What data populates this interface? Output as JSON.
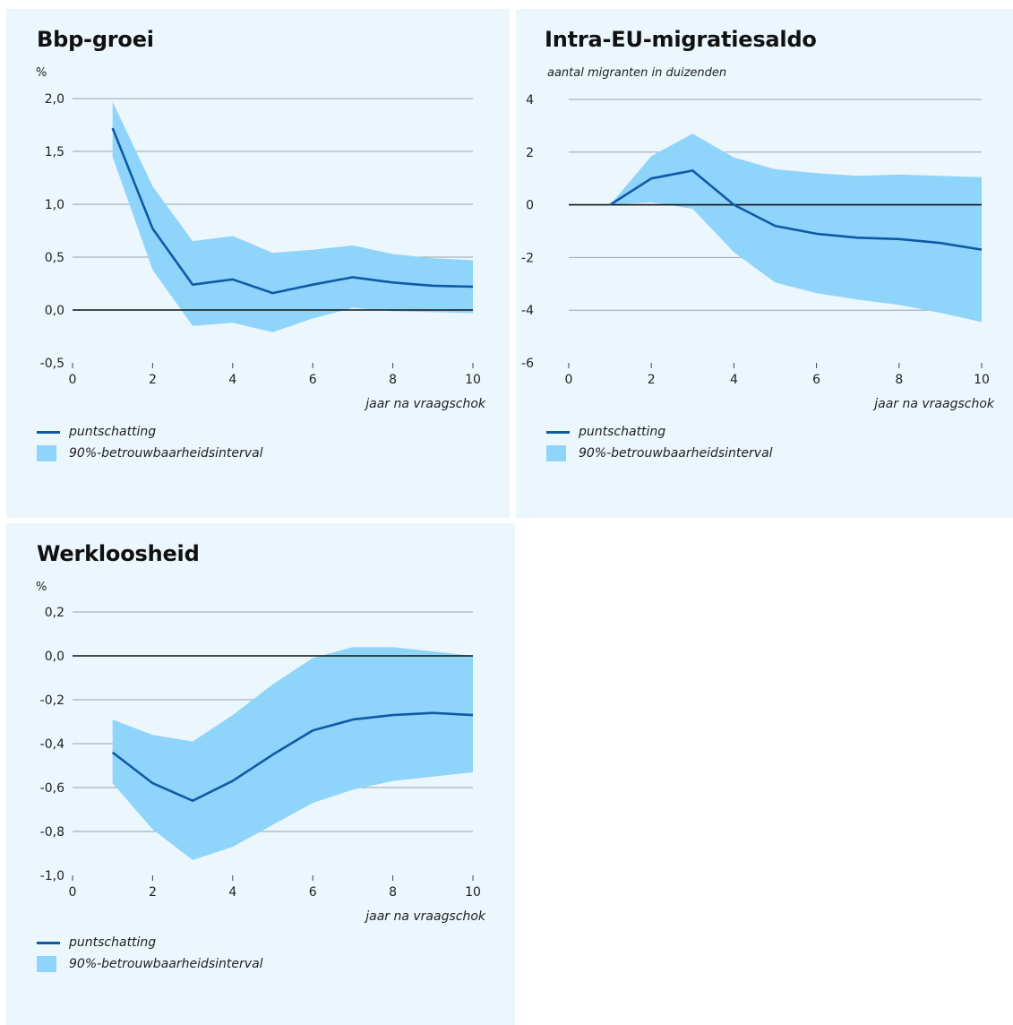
{
  "colors": {
    "background": "#ebf6fd",
    "band": "#8fd4fb",
    "line": "#0f5aa6",
    "grid": "#9aa3ab",
    "zero": "#111111"
  },
  "legend": {
    "line_label": "puntschatting",
    "band_label": "90%-betrouwbaarheidsinterval"
  },
  "chart_data": [
    {
      "type": "line",
      "title": "Bbp-groei",
      "ylabel": "%",
      "xlabel": "jaar na vraagschok",
      "xlim": [
        0,
        10
      ],
      "ylim": [
        -0.5,
        2.0
      ],
      "xticks": [
        "0",
        "2",
        "4",
        "6",
        "8",
        "10"
      ],
      "yticks": [
        "-0,5",
        "0,0",
        "0,5",
        "1,0",
        "1,5",
        "2,0"
      ],
      "grid": true,
      "legend_position": "bottom-left",
      "x": [
        1,
        2,
        3,
        4,
        5,
        6,
        7,
        8,
        9,
        10
      ],
      "series": [
        {
          "name": "puntschatting",
          "values": [
            1.72,
            0.77,
            0.24,
            0.29,
            0.16,
            0.24,
            0.31,
            0.26,
            0.23,
            0.22
          ]
        },
        {
          "name": "90%-betrouwbaarheidsinterval",
          "lower": [
            1.45,
            0.38,
            -0.15,
            -0.12,
            -0.21,
            -0.08,
            0.02,
            -0.01,
            -0.02,
            -0.03
          ],
          "upper": [
            1.97,
            1.17,
            0.65,
            0.7,
            0.54,
            0.57,
            0.61,
            0.53,
            0.49,
            0.47
          ]
        }
      ]
    },
    {
      "type": "line",
      "title": "Intra-EU-migratiesaldo",
      "ylabel": "aantal migranten in duizenden",
      "xlabel": "jaar na vraagschok",
      "xlim": [
        0,
        10
      ],
      "ylim": [
        -6,
        4
      ],
      "xticks": [
        "0",
        "2",
        "4",
        "6",
        "8",
        "10"
      ],
      "yticks": [
        "-6",
        "-4",
        "-2",
        "0",
        "2",
        "4"
      ],
      "grid": true,
      "legend_position": "bottom-left",
      "x": [
        1,
        2,
        3,
        4,
        5,
        6,
        7,
        8,
        9,
        10
      ],
      "series": [
        {
          "name": "puntschatting",
          "values": [
            0.0,
            1.0,
            1.3,
            0.0,
            -0.8,
            -1.1,
            -1.25,
            -1.3,
            -1.45,
            -1.7
          ]
        },
        {
          "name": "90%-betrouwbaarheidsinterval",
          "lower": [
            0.0,
            0.1,
            -0.15,
            -1.8,
            -2.95,
            -3.35,
            -3.6,
            -3.8,
            -4.1,
            -4.45
          ],
          "upper": [
            0.0,
            1.85,
            2.7,
            1.8,
            1.35,
            1.2,
            1.1,
            1.15,
            1.1,
            1.05
          ]
        }
      ]
    },
    {
      "type": "line",
      "title": "Werkloosheid",
      "ylabel": "%",
      "xlabel": "jaar na vraagschok",
      "xlim": [
        0,
        10
      ],
      "ylim": [
        -1.0,
        0.2
      ],
      "xticks": [
        "0",
        "2",
        "4",
        "6",
        "8",
        "10"
      ],
      "yticks": [
        "-1,0",
        "-0,8",
        "-0,6",
        "-0,4",
        "-0,2",
        "0,0",
        "0,2"
      ],
      "grid": true,
      "legend_position": "bottom-left",
      "x": [
        1,
        2,
        3,
        4,
        5,
        6,
        7,
        8,
        9,
        10
      ],
      "series": [
        {
          "name": "puntschatting",
          "values": [
            -0.44,
            -0.58,
            -0.66,
            -0.57,
            -0.45,
            -0.34,
            -0.29,
            -0.27,
            -0.26,
            -0.27
          ]
        },
        {
          "name": "90%-betrouwbaarheidsinterval",
          "lower": [
            -0.58,
            -0.79,
            -0.93,
            -0.87,
            -0.77,
            -0.67,
            -0.61,
            -0.57,
            -0.55,
            -0.53
          ],
          "upper": [
            -0.29,
            -0.36,
            -0.39,
            -0.27,
            -0.13,
            -0.01,
            0.04,
            0.04,
            0.02,
            0.0
          ]
        }
      ]
    }
  ]
}
